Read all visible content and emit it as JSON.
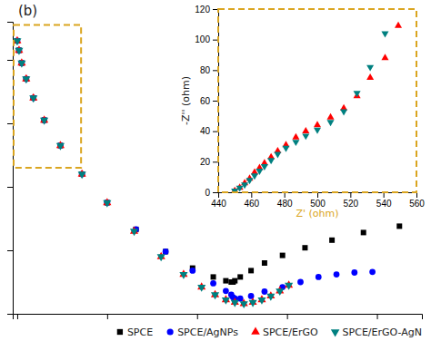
{
  "chart_data": [
    {
      "type": "scatter",
      "title": "(b)",
      "xlim": [
        -5,
        450
      ],
      "ylim": [
        0,
        460
      ],
      "xticks": [
        0,
        100,
        200,
        300,
        400
      ],
      "yticks": [
        0,
        100,
        200,
        300,
        400
      ],
      "tick_labels": false,
      "legend": "bottom",
      "region": {
        "x": -4,
        "y": 230,
        "width": 75,
        "height": 225,
        "color": "#DAA520",
        "line_style": "dashed"
      },
      "series": [
        {
          "name": "SPCE",
          "color": "black",
          "marker": "square",
          "x": [
            0,
            2,
            5,
            10,
            18,
            30,
            48,
            72,
            100,
            132,
            165,
            195,
            218,
            232,
            238,
            240,
            242,
            248,
            260,
            275,
            295,
            320,
            350,
            385,
            425
          ],
          "values": [
            430,
            415,
            395,
            370,
            340,
            305,
            265,
            220,
            175,
            133,
            98,
            72,
            58,
            52,
            50,
            50,
            52,
            58,
            68,
            80,
            92,
            104,
            116,
            128,
            138
          ]
        },
        {
          "name": "SPCE/AgNPs",
          "color": "blue",
          "marker": "circle",
          "x": [
            0,
            2,
            5,
            10,
            18,
            30,
            48,
            72,
            100,
            132,
            165,
            195,
            218,
            232,
            238,
            240,
            242,
            248,
            260,
            275,
            295,
            315,
            335,
            355,
            375,
            395
          ],
          "values": [
            430,
            415,
            395,
            370,
            340,
            305,
            265,
            220,
            175,
            133,
            98,
            68,
            48,
            36,
            30,
            26,
            24,
            24,
            28,
            35,
            42,
            50,
            58,
            62,
            65,
            66
          ]
        },
        {
          "name": "SPCE/ErGO",
          "color": "red",
          "marker": "triangle-up",
          "x": [
            0,
            2,
            5,
            10,
            18,
            30,
            48,
            72,
            100,
            130,
            160,
            185,
            205,
            220,
            232,
            242,
            252,
            262,
            272,
            282,
            292,
            302
          ],
          "values": [
            430,
            415,
            395,
            370,
            340,
            305,
            265,
            220,
            175,
            130,
            90,
            62,
            42,
            30,
            22,
            18,
            16,
            18,
            22,
            28,
            36,
            45
          ]
        },
        {
          "name": "SPCE/ErGO-AgN",
          "color": "teal",
          "marker": "triangle-down",
          "x": [
            0,
            2,
            5,
            10,
            18,
            30,
            48,
            72,
            100,
            130,
            160,
            185,
            205,
            220,
            232,
            242,
            252,
            262,
            272,
            282,
            292,
            302
          ],
          "values": [
            430,
            415,
            395,
            370,
            340,
            305,
            265,
            220,
            175,
            130,
            90,
            62,
            42,
            30,
            22,
            18,
            16,
            18,
            22,
            28,
            36,
            45
          ]
        }
      ]
    },
    {
      "type": "scatter",
      "xlabel": "Z' (ohm)",
      "ylabel": "-Z'' (ohm)",
      "xlim": [
        440,
        560
      ],
      "ylim": [
        0,
        120
      ],
      "xticks": [
        440,
        460,
        480,
        500,
        520,
        540,
        560
      ],
      "yticks": [
        0,
        20,
        40,
        60,
        80,
        100,
        120
      ],
      "series": [
        {
          "color": "red",
          "marker": "triangle-up",
          "x": [
            450,
            453,
            456,
            459,
            462,
            465,
            468,
            472,
            476,
            481,
            487,
            493,
            500,
            508,
            516,
            524,
            532,
            541,
            549
          ],
          "values": [
            1,
            3,
            6,
            9,
            13,
            16,
            19,
            23,
            27,
            31,
            36,
            40,
            44,
            49,
            55,
            63,
            75,
            88,
            109
          ]
        },
        {
          "color": "teal",
          "marker": "triangle-down",
          "x": [
            450,
            453,
            456,
            459,
            462,
            465,
            468,
            472,
            476,
            481,
            487,
            493,
            500,
            508,
            516,
            524,
            532,
            541
          ],
          "values": [
            1,
            3,
            5,
            8,
            11,
            14,
            17,
            21,
            25,
            29,
            33,
            37,
            41,
            46,
            53,
            65,
            82,
            104
          ]
        }
      ]
    }
  ]
}
